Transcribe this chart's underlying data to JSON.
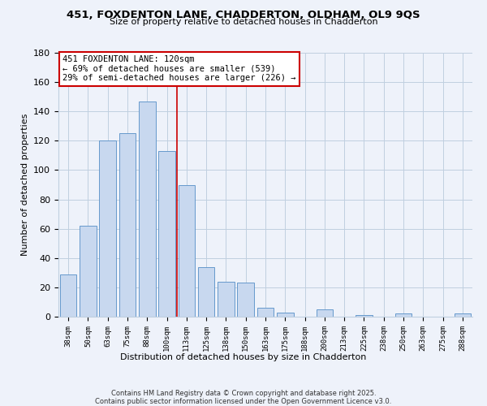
{
  "title": "451, FOXDENTON LANE, CHADDERTON, OLDHAM, OL9 9QS",
  "subtitle": "Size of property relative to detached houses in Chadderton",
  "xlabel": "Distribution of detached houses by size in Chadderton",
  "ylabel": "Number of detached properties",
  "bar_labels": [
    "38sqm",
    "50sqm",
    "63sqm",
    "75sqm",
    "88sqm",
    "100sqm",
    "113sqm",
    "125sqm",
    "138sqm",
    "150sqm",
    "163sqm",
    "175sqm",
    "188sqm",
    "200sqm",
    "213sqm",
    "225sqm",
    "238sqm",
    "250sqm",
    "263sqm",
    "275sqm",
    "288sqm"
  ],
  "bar_values": [
    29,
    62,
    120,
    125,
    147,
    113,
    90,
    34,
    24,
    23,
    6,
    3,
    0,
    5,
    0,
    1,
    0,
    2,
    0,
    0,
    2
  ],
  "bar_color": "#c8d8ef",
  "bar_edge_color": "#6699cc",
  "annotation_title": "451 FOXDENTON LANE: 120sqm",
  "annotation_line2": "← 69% of detached houses are smaller (539)",
  "annotation_line3": "29% of semi-detached houses are larger (226) →",
  "annotation_box_color": "#ffffff",
  "annotation_box_edge": "#cc0000",
  "vline_color": "#cc0000",
  "vline_x": 5.5,
  "ylim": [
    0,
    180
  ],
  "yticks": [
    0,
    20,
    40,
    60,
    80,
    100,
    120,
    140,
    160,
    180
  ],
  "grid_color": "#c0cfe0",
  "background_color": "#eef2fa",
  "footer_line1": "Contains HM Land Registry data © Crown copyright and database right 2025.",
  "footer_line2": "Contains public sector information licensed under the Open Government Licence v3.0."
}
